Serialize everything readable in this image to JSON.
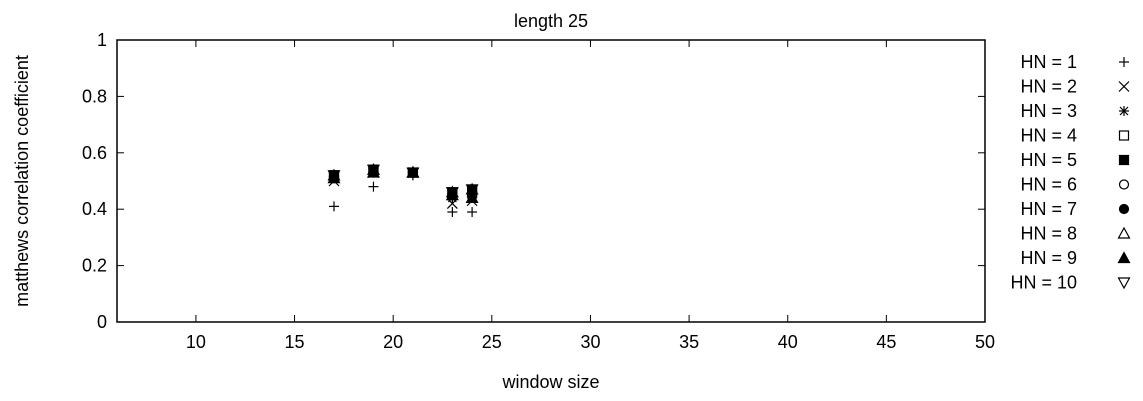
{
  "chart_data": {
    "type": "scatter",
    "title": "length 25",
    "xlabel": "window size",
    "ylabel": "matthews correlation coefficient",
    "xlim": [
      6,
      50
    ],
    "ylim": [
      0,
      1
    ],
    "xticks": [
      "10",
      "15",
      "20",
      "25",
      "30",
      "35",
      "40",
      "45",
      "50"
    ],
    "yticks": [
      "0",
      "0.2",
      "0.4",
      "0.6",
      "0.8",
      "1"
    ],
    "grid": false,
    "legend_position": "right",
    "series": [
      {
        "name": "HN = 1",
        "marker": "plus",
        "points": [
          [
            17,
            0.41
          ],
          [
            19,
            0.48
          ],
          [
            21,
            0.52
          ],
          [
            23,
            0.39
          ],
          [
            24,
            0.39
          ]
        ]
      },
      {
        "name": "HN = 2",
        "marker": "cross",
        "points": [
          [
            17,
            0.5
          ],
          [
            19,
            0.53
          ],
          [
            21,
            0.53
          ],
          [
            23,
            0.42
          ],
          [
            24,
            0.43
          ]
        ]
      },
      {
        "name": "HN = 3",
        "marker": "star",
        "points": [
          [
            17,
            0.51
          ],
          [
            19,
            0.54
          ],
          [
            21,
            0.53
          ],
          [
            23,
            0.44
          ],
          [
            24,
            0.44
          ]
        ]
      },
      {
        "name": "HN = 4",
        "marker": "square-open",
        "points": [
          [
            17,
            0.52
          ],
          [
            19,
            0.54
          ],
          [
            21,
            0.53
          ],
          [
            23,
            0.45
          ],
          [
            24,
            0.46
          ]
        ]
      },
      {
        "name": "HN = 5",
        "marker": "square-filled",
        "points": [
          [
            17,
            0.52
          ],
          [
            19,
            0.54
          ],
          [
            21,
            0.53
          ],
          [
            23,
            0.46
          ],
          [
            24,
            0.47
          ]
        ]
      },
      {
        "name": "HN = 6",
        "marker": "circle-open",
        "points": [
          [
            17,
            0.52
          ],
          [
            19,
            0.53
          ],
          [
            21,
            0.53
          ],
          [
            23,
            0.45
          ],
          [
            24,
            0.45
          ]
        ]
      },
      {
        "name": "HN = 7",
        "marker": "circle-filled",
        "points": [
          [
            17,
            0.51
          ],
          [
            19,
            0.54
          ],
          [
            21,
            0.53
          ],
          [
            23,
            0.45
          ],
          [
            24,
            0.46
          ]
        ]
      },
      {
        "name": "HN = 8",
        "marker": "triangle-open",
        "points": [
          [
            17,
            0.52
          ],
          [
            19,
            0.54
          ],
          [
            21,
            0.53
          ],
          [
            23,
            0.46
          ],
          [
            24,
            0.47
          ]
        ]
      },
      {
        "name": "HN = 9",
        "marker": "triangle-filled",
        "points": [
          [
            17,
            0.51
          ],
          [
            19,
            0.53
          ],
          [
            21,
            0.53
          ],
          [
            23,
            0.45
          ],
          [
            24,
            0.44
          ]
        ]
      },
      {
        "name": "HN = 10",
        "marker": "invtriangle-open",
        "points": [
          [
            17,
            0.52
          ],
          [
            19,
            0.54
          ],
          [
            21,
            0.53
          ],
          [
            23,
            0.46
          ],
          [
            24,
            0.47
          ]
        ]
      }
    ]
  }
}
